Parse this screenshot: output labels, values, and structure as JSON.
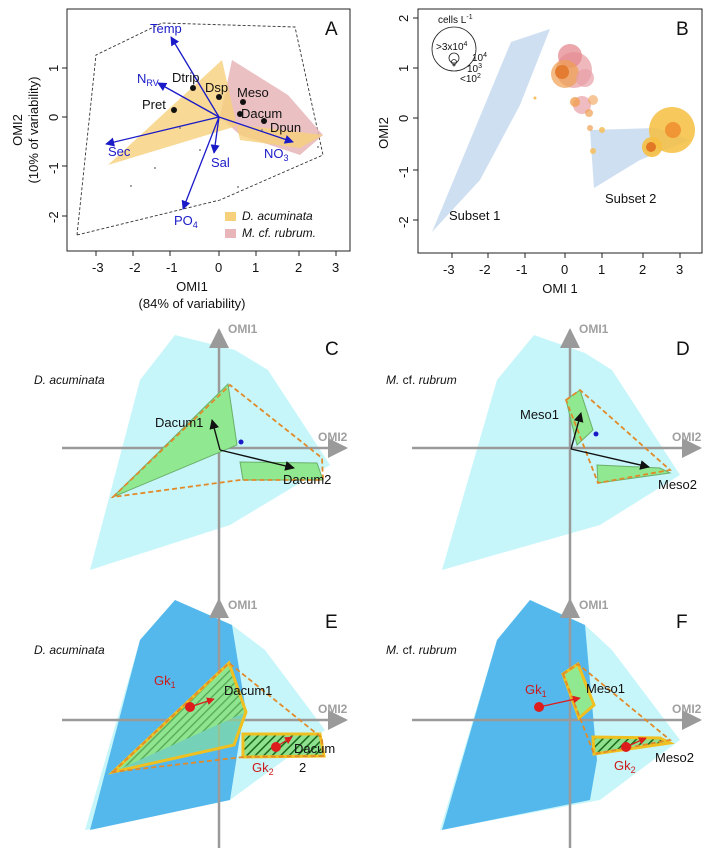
{
  "panel_labels": [
    "A",
    "B",
    "C",
    "D",
    "E",
    "F"
  ],
  "panelA": {
    "xlabel": "OMI1",
    "xlabel_sub": "(84% of variability)",
    "ylabel": "OMI2",
    "ylabel_sub": "(10% of variability)",
    "xticks": [
      "-3",
      "-2",
      "-1",
      "0",
      "1",
      "2",
      "3"
    ],
    "yticks": [
      "1",
      "0",
      "-1",
      "-2"
    ],
    "vectors": {
      "temp": "Temp",
      "nrv": "N",
      "nrv_sub": "RV",
      "sec": "Sec",
      "sal": "Sal",
      "no3": "NO",
      "no3_sub": "3",
      "po4": "PO",
      "po4_sub": "4"
    },
    "points": {
      "dtrip": "Dtrip",
      "dsp": "Dsp",
      "pret": "Pret",
      "meso": "Meso",
      "dacum": "Dacum",
      "dpun": "Dpun"
    },
    "legend": [
      {
        "label": "D. acuminata",
        "color": "#f6d07a"
      },
      {
        "label": "M. cf. rubrum.",
        "color": "#e8b5b8"
      }
    ]
  },
  "panelB": {
    "xlabel": "OMI 1",
    "ylabel": "OMI2",
    "xticks": [
      "-3",
      "-2",
      "-1",
      "0",
      "1",
      "2",
      "3"
    ],
    "yticks": [
      "2",
      "1",
      "0",
      "-1",
      "-2"
    ],
    "size_legend": {
      "title": "cells L",
      "title_sup": "-1",
      "items": [
        ">3x10",
        "10",
        "10",
        "<10"
      ],
      "sups": [
        "4",
        "4",
        "3",
        "2"
      ]
    },
    "subset1": "Subset 1",
    "subset2": "Subset 2"
  },
  "panelC": {
    "species": "D. acuminata",
    "axis_v": "OMI1",
    "axis_h": "OMI2",
    "arrow1": "Dacum1",
    "arrow2": "Dacum2"
  },
  "panelD": {
    "species_pre": "M.",
    "species_mid": " cf. ",
    "species_post": "rubrum",
    "axis_v": "OMI1",
    "axis_h": "OMI2",
    "arrow1": "Meso1",
    "arrow2": "Meso2"
  },
  "panelE": {
    "species": "D. acuminata",
    "axis_v": "OMI1",
    "axis_h": "OMI2",
    "gk1": "Gk",
    "gk1_sub": "1",
    "gk2": "Gk",
    "gk2_sub": "2",
    "arrow1": "Dacum1",
    "arrow2_a": "Dacum",
    "arrow2_b": "2"
  },
  "panelF": {
    "species_pre": "M.",
    "species_mid": " cf. ",
    "species_post": "rubrum",
    "axis_v": "OMI1",
    "axis_h": "OMI2",
    "gk1": "Gk",
    "gk1_sub": "1",
    "gk2": "Gk",
    "gk2_sub": "2",
    "arrow1": "Meso1",
    "arrow2": "Meso2"
  },
  "colors": {
    "vector": "#1a1ac8",
    "yellow": "#f6d07a",
    "pink": "#e8b5b8",
    "subset": "#c6d9ee",
    "cyan": "#c7f6fa",
    "blue": "#55b8ec",
    "green": "#90e890",
    "orange": "#e08a2a",
    "red": "#dd1c1c"
  }
}
